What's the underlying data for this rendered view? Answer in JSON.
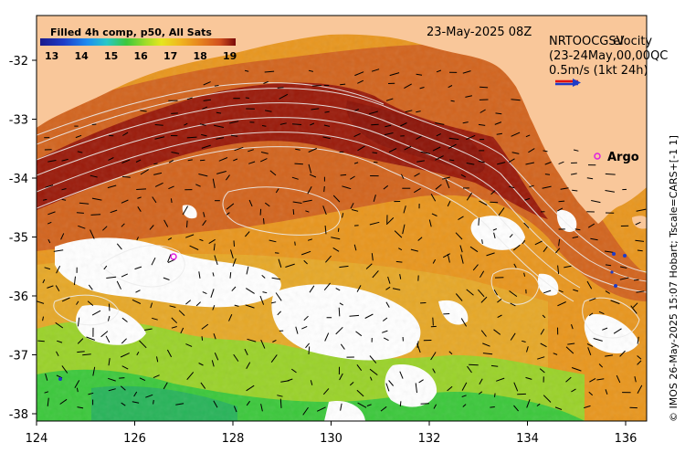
{
  "map": {
    "colorbar": {
      "title": "Filled 4h comp, p50, All Sats",
      "ticks": [
        "13",
        "14",
        "15",
        "16",
        "17",
        "18",
        "19"
      ],
      "colors": [
        "#1a1a8c",
        "#1e3cc8",
        "#1e8cf0",
        "#28c8c8",
        "#3cc83c",
        "#a0dc28",
        "#e6e61e",
        "#f0b41e",
        "#e6821e",
        "#d2501e",
        "#a01e14",
        "#7a0a0a"
      ]
    },
    "date_label": "23-May-2025 08Z",
    "legend": {
      "line1": "NRTOOCGSV",
      "line1b": "elocity",
      "line2": "(23-24May,00,00QC",
      "line3": "0.5m/s (1kt 24h)"
    },
    "argo_label": "Argo",
    "side_text": "© IMOS 26-May-2025 15:07 Hobart; Tscale=CARS+[-1 1]",
    "x_ticks": [
      "124",
      "126",
      "128",
      "130",
      "132",
      "134",
      "136"
    ],
    "y_ticks": [
      "-32",
      "-33",
      "-34",
      "-35",
      "-36",
      "-37",
      "-38"
    ],
    "colors": {
      "land": "#f9c79a",
      "ocean_warm": "#d2641e",
      "ocean_hot": "#9a1a0a",
      "ocean_mid": "#e8961e",
      "ocean_cool": "#9ad22a",
      "ocean_cold": "#3cc83c",
      "cloud": "#ffffff",
      "argo_marker": "#e020e0",
      "vector": "#000000",
      "contour": "#e6e6e6"
    }
  }
}
